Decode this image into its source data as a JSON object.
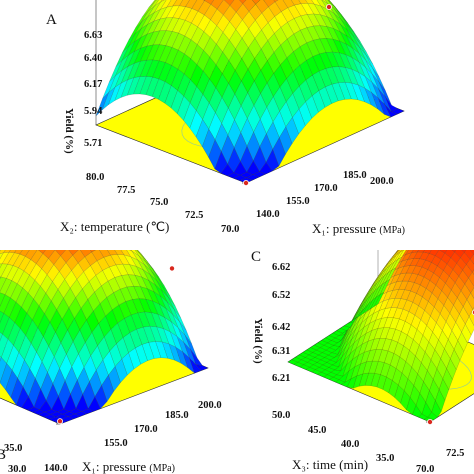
{
  "chart_data": [
    {
      "type": "surface",
      "panel_label": "A",
      "zlabel": "Yield (%)",
      "zticks": [
        "5.71",
        "5.94",
        "6.17",
        "6.40",
        "6.63"
      ],
      "zlim": [
        5.71,
        6.63
      ],
      "x1": {
        "label": "X₁: pressure",
        "unit": "(MPa)",
        "ticks": [
          "140.0",
          "155.0",
          "170.0",
          "185.0",
          "200.0"
        ],
        "range": [
          140,
          200
        ]
      },
      "x2": {
        "label": "X₂: temperature",
        "unit": "(℃)",
        "ticks": [
          "70.0",
          "72.5",
          "75.0",
          "77.5",
          "80.0"
        ],
        "range": [
          70,
          80
        ]
      },
      "colormap": [
        "#0000ff",
        "#00ffff",
        "#00ff00",
        "#ffff00",
        "#ff0000"
      ],
      "floor_color": "#ffff00",
      "design_points": [
        {
          "x": 140,
          "y": 70,
          "z": 5.71
        },
        {
          "x": 200,
          "y": 75,
          "z": 6.17
        },
        {
          "x": 170,
          "y": 75,
          "z": 6.6
        }
      ]
    },
    {
      "type": "surface",
      "panel_label": "B",
      "zlabel": "",
      "x1": {
        "label": "X₁: pressure",
        "unit": "(MPa)",
        "ticks": [
          "140.0",
          "155.0",
          "170.0",
          "185.0",
          "200.0"
        ],
        "range": [
          140,
          200
        ]
      },
      "x3": {
        "label": "",
        "ticks": [
          "30.0",
          "35.0"
        ],
        "range": [
          30,
          50
        ]
      },
      "colormap": [
        "#0000ff",
        "#00ffff",
        "#00ff00",
        "#ffff00",
        "#ff0000"
      ],
      "floor_color": "#ffff00"
    },
    {
      "type": "surface",
      "panel_label": "C",
      "zlabel": "Yield (%)",
      "zticks": [
        "6.21",
        "6.31",
        "6.42",
        "6.52",
        "6.62"
      ],
      "zlim": [
        6.21,
        6.62
      ],
      "x3": {
        "label": "X₃: time",
        "unit": "(min)",
        "ticks": [
          "50.0",
          "45.0",
          "40.0",
          "35.0"
        ],
        "range": [
          30,
          50
        ]
      },
      "x2": {
        "label": "",
        "ticks": [
          "70.0",
          "72.5"
        ],
        "range": [
          70,
          80
        ]
      },
      "colormap": [
        "#00ff00",
        "#ffff00",
        "#ff0000"
      ],
      "floor_color": "#ffff00"
    }
  ]
}
